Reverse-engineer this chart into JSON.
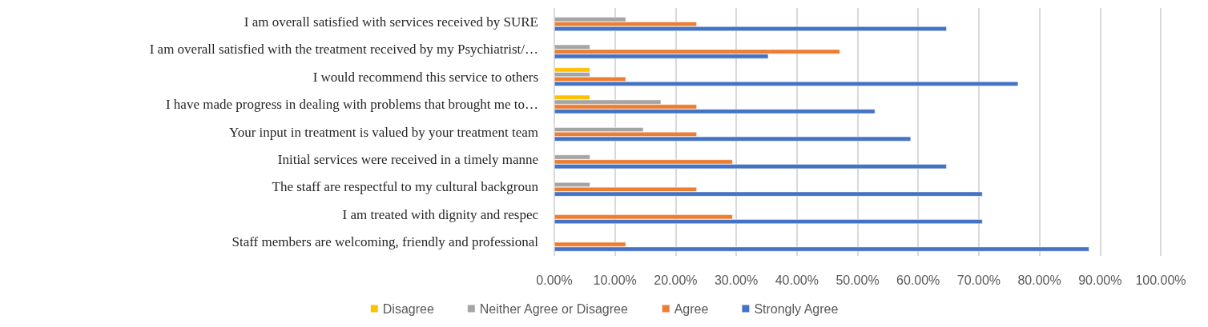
{
  "chart_data": {
    "type": "bar",
    "orientation": "horizontal",
    "categories": [
      "I am overall satisfied with services received by SURE",
      "I am overall satisfied with the treatment received by my Psychiatrist/…",
      "I would recommend this service to others",
      "I have made progress in dealing with problems that brought me to…",
      "Your input in treatment is valued by your treatment team",
      "Initial services were received in a timely manne",
      "The staff are respectful to my cultural backgroun",
      "I am treated with dignity and respec",
      "Staff members are welcoming, friendly and professional"
    ],
    "series": [
      {
        "name": "Disagree",
        "color": "#ffc000",
        "values": [
          null,
          null,
          5.9,
          5.9,
          null,
          null,
          null,
          null,
          null
        ]
      },
      {
        "name": "Neither Agree or Disagree",
        "color": "#a5a5a5",
        "values": [
          11.8,
          5.9,
          5.9,
          17.6,
          14.7,
          5.9,
          5.9,
          null,
          null
        ]
      },
      {
        "name": "Agree",
        "color": "#ed7d31",
        "values": [
          23.5,
          47.1,
          11.8,
          23.5,
          23.5,
          29.4,
          23.5,
          29.4,
          11.8
        ]
      },
      {
        "name": "Strongly Agree",
        "color": "#4472c4",
        "values": [
          64.7,
          35.3,
          76.5,
          52.9,
          58.8,
          64.7,
          70.6,
          70.6,
          88.2
        ]
      }
    ],
    "xlim": [
      0,
      100
    ],
    "xticks": [
      {
        "value": 0,
        "label": "0.00%"
      },
      {
        "value": 10,
        "label": "10.00%"
      },
      {
        "value": 20,
        "label": "20.00%"
      },
      {
        "value": 30,
        "label": "30.00%"
      },
      {
        "value": 40,
        "label": "40.00%"
      },
      {
        "value": 50,
        "label": "50.00%"
      },
      {
        "value": 60,
        "label": "60.00%"
      },
      {
        "value": 70,
        "label": "70.00%"
      },
      {
        "value": 80,
        "label": "80.00%"
      },
      {
        "value": 90,
        "label": "90.00%"
      },
      {
        "value": 100,
        "label": "100.00%"
      }
    ],
    "grid": "x",
    "legend": "bottom"
  }
}
